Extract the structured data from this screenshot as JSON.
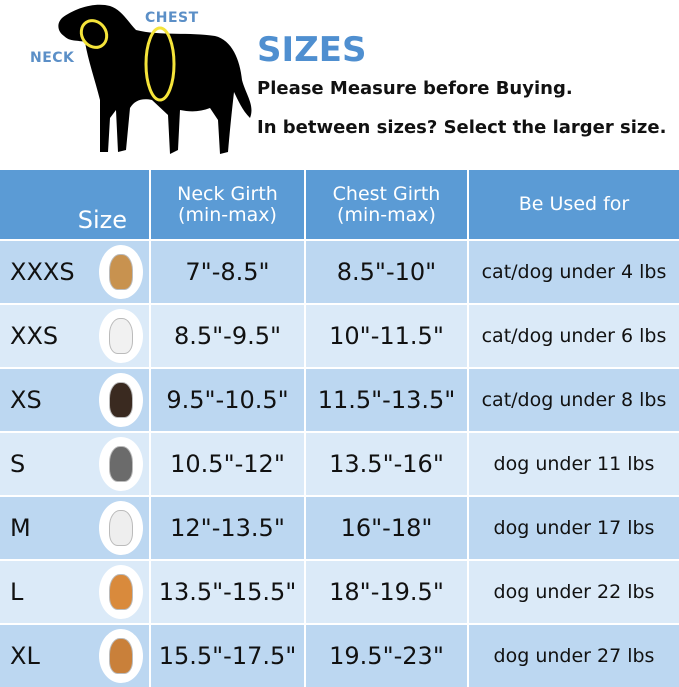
{
  "header": {
    "neck_label": "NECK",
    "chest_label": "CHEST",
    "title": "SIZES",
    "line1": "Please Measure before Buying.",
    "line2": "In between sizes? Select the larger size."
  },
  "table": {
    "columns": [
      "Size",
      "Neck Girth\n(min-max)",
      "Chest Girth\n(min-max)",
      "Be Used for"
    ],
    "col_neck_1": "Neck Girth",
    "col_neck_2": "(min-max)",
    "col_chest_1": "Chest Girth",
    "col_chest_2": "(min-max)",
    "rows": [
      {
        "size": "XXXS",
        "neck": "7\"-8.5\"",
        "chest": "8.5\"-10\"",
        "use": "cat/dog under 4 lbs",
        "dog_color": "#c8924f"
      },
      {
        "size": "XXS",
        "neck": "8.5\"-9.5\"",
        "chest": "10\"-11.5\"",
        "use": "cat/dog under 6 lbs",
        "dog_color": "#f1f1f1"
      },
      {
        "size": "XS",
        "neck": "9.5\"-10.5\"",
        "chest": "11.5\"-13.5\"",
        "use": "cat/dog under 8 lbs",
        "dog_color": "#3a2a20"
      },
      {
        "size": "S",
        "neck": "10.5\"-12\"",
        "chest": "13.5\"-16\"",
        "use": "dog under 11 lbs",
        "dog_color": "#6b6b6b"
      },
      {
        "size": "M",
        "neck": "12\"-13.5\"",
        "chest": "16\"-18\"",
        "use": "dog under 17 lbs",
        "dog_color": "#eeeeee"
      },
      {
        "size": "L",
        "neck": "13.5\"-15.5\"",
        "chest": "18\"-19.5\"",
        "use": "dog under 22 lbs",
        "dog_color": "#d98a3c"
      },
      {
        "size": "XL",
        "neck": "15.5\"-17.5\"",
        "chest": "19.5\"-23\"",
        "use": "dog under 27 lbs",
        "dog_color": "#c9803a"
      }
    ]
  },
  "colors": {
    "header_bg": "#5b9bd5",
    "row_dark": "#bcd7f1",
    "row_light": "#dbeaf8",
    "title": "#4f8fd0",
    "collar": "#f5e43a"
  }
}
